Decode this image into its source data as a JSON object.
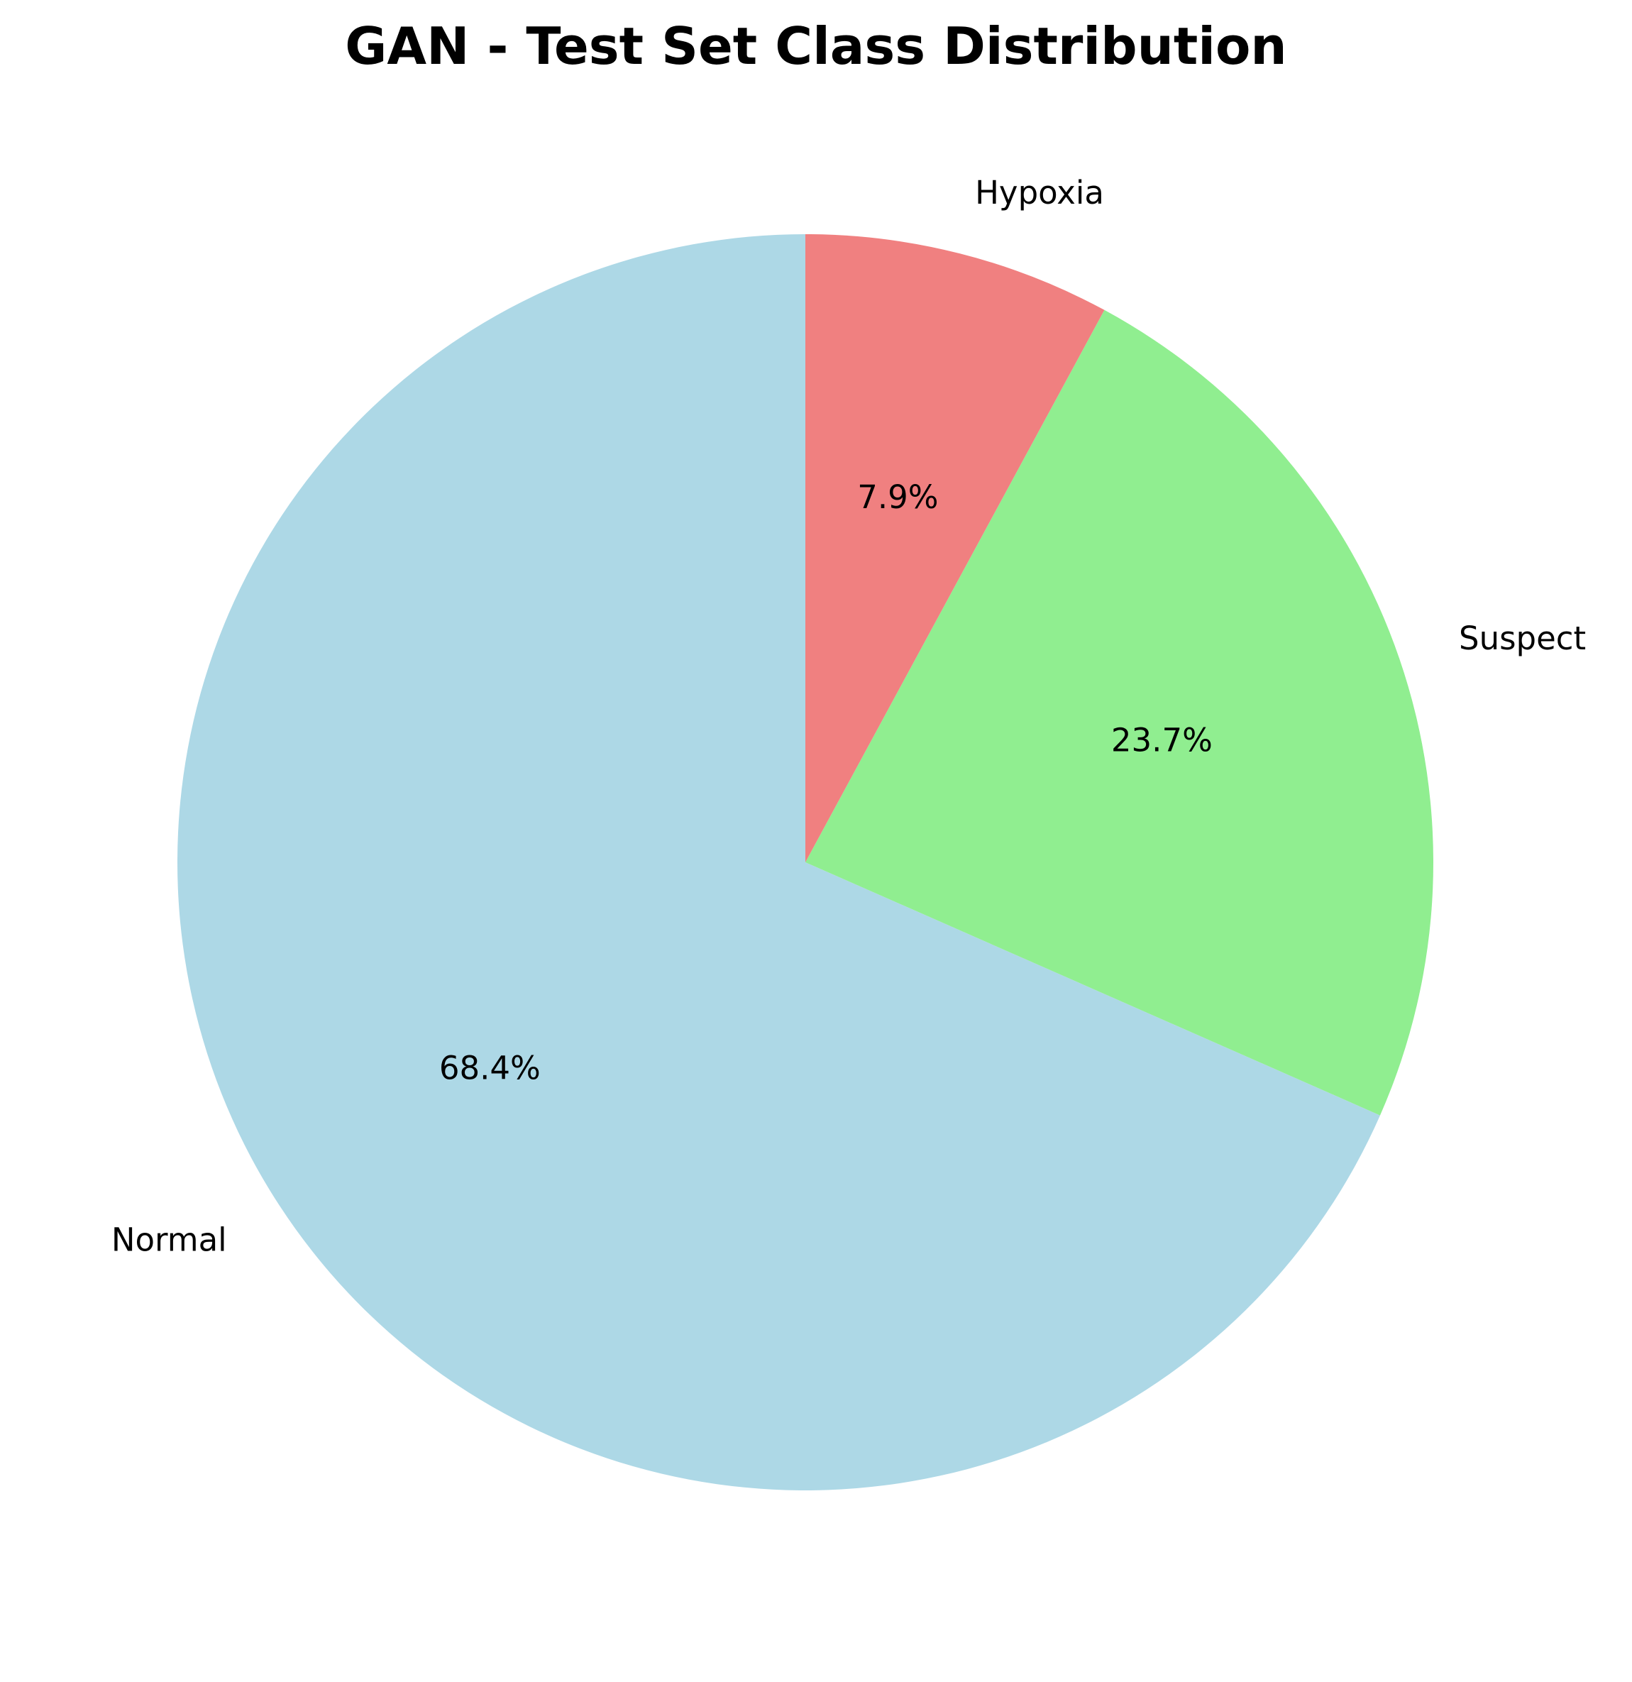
{
  "chart_data": {
    "type": "pie",
    "title": "GAN - Test Set Class Distribution",
    "start_angle": 90,
    "direction": "counterclockwise",
    "slices": [
      {
        "label": "Normal",
        "value": 68.4,
        "pct_label": "68.4%",
        "color": "#add8e6"
      },
      {
        "label": "Suspect",
        "value": 23.7,
        "pct_label": "23.7%",
        "color": "#90ee90"
      },
      {
        "label": "Hypoxia",
        "value": 7.9,
        "pct_label": "7.9%",
        "color": "#f08080"
      }
    ]
  }
}
